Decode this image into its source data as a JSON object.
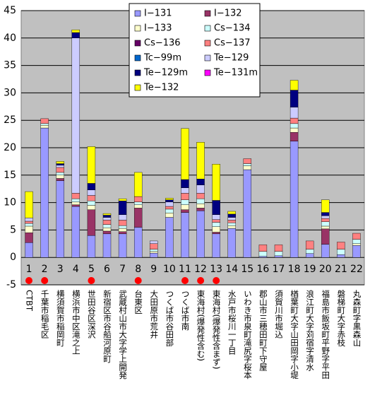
{
  "chart_data": {
    "type": "bar",
    "stacked": true,
    "categories": [
      "1",
      "2",
      "3",
      "4",
      "5",
      "6",
      "7",
      "8",
      "9",
      "10",
      "11",
      "12",
      "13",
      "14",
      "15",
      "16",
      "17",
      "18",
      "19",
      "20",
      "21",
      "22"
    ],
    "category_labels": [
      "CTBT",
      "千葉市稲毛区",
      "横須賀市稲岡町",
      "横浜市中区滝之上",
      "世田谷区深沢",
      "新宿区市谷船河原町",
      "武蔵村山市大字学上開発",
      "台東区",
      "大田原市荒井",
      "つくば市谷田部",
      "つくば市南",
      "東海村(爆発性含む)",
      "東海村(爆発性含まず)",
      "水戸市桜川一丁目",
      "いわき市泉町滝尻字桜本",
      "郡山市三穂田町下守屋",
      "須賀川市堀込",
      "楢葉町大字山田岡字小堤",
      "浪江町大字苅宿字清水",
      "福島市飯坂町平野字平田",
      "磐梯町大字赤枝",
      "丸森町字黒森山"
    ],
    "series": [
      {
        "name": "I−131",
        "color": "#9999ff",
        "values": [
          2.7,
          23.6,
          14,
          9.3,
          4.0,
          4.3,
          4.3,
          5.5,
          0.8,
          7.3,
          8.2,
          8.5,
          4.3,
          5.3,
          16,
          0.2,
          0.3,
          21.2,
          0.7,
          2.4,
          0.5,
          2.2
        ]
      },
      {
        "name": "I−132",
        "color": "#993366",
        "values": [
          1.8,
          0,
          0.4,
          0.3,
          4.7,
          0.5,
          0.4,
          3.5,
          0,
          0,
          0.5,
          0.5,
          0.3,
          0,
          0,
          0,
          0,
          1.6,
          0,
          2.8,
          0,
          0
        ]
      },
      {
        "name": "I−133",
        "color": "#ffffcc",
        "values": [
          1.2,
          0.5,
          0.6,
          0.5,
          0.8,
          0.6,
          0.6,
          0.6,
          0.3,
          0.8,
          0.9,
          0.8,
          1.0,
          0.5,
          0.7,
          0,
          0,
          0.8,
          0,
          0.5,
          0,
          0.3
        ]
      },
      {
        "name": "Cs−134",
        "color": "#ccffff",
        "values": [
          0.5,
          0.3,
          0.5,
          0.6,
          0.8,
          0.6,
          0.5,
          0.5,
          0.4,
          0.7,
          0.9,
          0.9,
          0.8,
          0.5,
          0.4,
          0.9,
          0.8,
          0.8,
          0.8,
          0.8,
          1.0,
          0.8
        ]
      },
      {
        "name": "Cs−136",
        "color": "#660066",
        "values": [
          0,
          0,
          0,
          0,
          0,
          0,
          0,
          0,
          0,
          0,
          0,
          0,
          0,
          0,
          0,
          0,
          0,
          0,
          0,
          0,
          0,
          0
        ]
      },
      {
        "name": "Cs−137",
        "color": "#ff8080",
        "values": [
          0.4,
          0.9,
          0.9,
          1.0,
          1.0,
          0.8,
          1.0,
          1.0,
          1.0,
          0.5,
          1.2,
          1.0,
          0.5,
          0.5,
          0.9,
          1.2,
          1.2,
          1.0,
          1.5,
          0.6,
          1.3,
          1.1
        ]
      },
      {
        "name": "Tc−99m",
        "color": "#0066cc",
        "values": [
          0,
          0,
          0,
          0,
          0,
          0,
          0,
          0,
          0,
          0,
          0,
          0,
          0,
          0,
          0,
          0,
          0,
          0,
          0,
          0,
          0,
          0
        ]
      },
      {
        "name": "Te−129",
        "color": "#ccccff",
        "values": [
          0.6,
          0,
          0.4,
          28.3,
          1.0,
          0.5,
          1.0,
          0,
          0.5,
          0.8,
          1.0,
          1.5,
          0.9,
          0.5,
          0,
          0,
          0,
          2.0,
          0,
          0.5,
          0,
          0
        ]
      },
      {
        "name": "Te−129m",
        "color": "#000080",
        "values": [
          0,
          0,
          0.3,
          1.0,
          1.2,
          0.4,
          2.5,
          0,
          0,
          0.4,
          1.5,
          1.1,
          2.6,
          0.6,
          0,
          0,
          0,
          3.1,
          0,
          0.6,
          0,
          0
        ]
      },
      {
        "name": "Te−131m",
        "color": "#ff00ff",
        "values": [
          0,
          0,
          0,
          0,
          0,
          0,
          0,
          0,
          0,
          0,
          0,
          0,
          0,
          0,
          0,
          0,
          0,
          0,
          0,
          0,
          0,
          0
        ]
      },
      {
        "name": "Te−132",
        "color": "#ffff00",
        "values": [
          4.8,
          0,
          0.4,
          0.5,
          6.7,
          0.3,
          0.4,
          4.4,
          0,
          0.3,
          9.3,
          6.7,
          6.6,
          0.5,
          0,
          0,
          0,
          1.8,
          0,
          2.3,
          0,
          0
        ]
      }
    ],
    "ylim": [
      -5,
      45
    ],
    "yticks": [
      -5,
      0,
      5,
      10,
      15,
      20,
      25,
      30,
      35,
      40,
      45
    ],
    "grid": true
  }
}
